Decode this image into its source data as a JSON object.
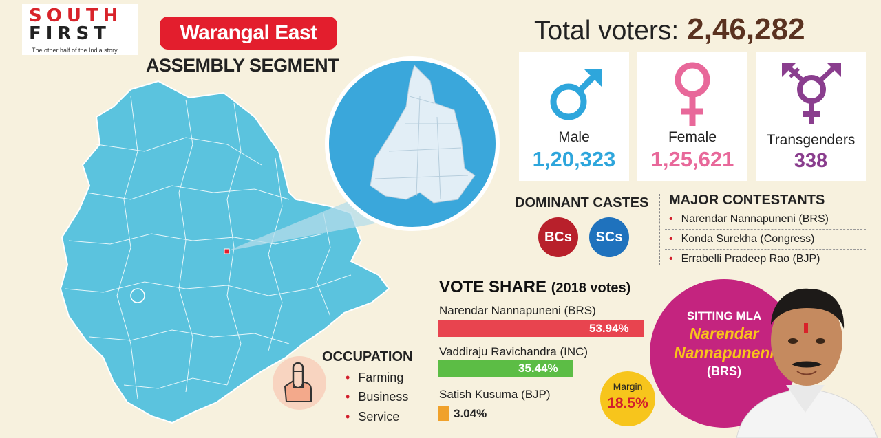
{
  "logo": {
    "line1": "SOUTH",
    "line2": "FIRST",
    "tagline": "The other half of the India story"
  },
  "title": "Warangal East",
  "subtitle": "ASSEMBLY SEGMENT",
  "total_voters": {
    "label": "Total voters:",
    "value": "2,46,282"
  },
  "gender": [
    {
      "label": "Male",
      "value": "1,20,323",
      "color": "#2ea6dc",
      "icon": "male-icon"
    },
    {
      "label": "Female",
      "value": "1,25,621",
      "color": "#e8689a",
      "icon": "female-icon"
    },
    {
      "label": "Transgenders",
      "value": "338",
      "color": "#8a3e8e",
      "icon": "transgender-icon"
    }
  ],
  "dominant_castes": {
    "title": "DOMINANT CASTES",
    "items": [
      {
        "label": "BCs",
        "color": "#b8202b"
      },
      {
        "label": "SCs",
        "color": "#1f72bd"
      }
    ]
  },
  "major_contestants": {
    "title": "MAJOR CONTESTANTS",
    "items": [
      "Narendar Nannapuneni (BRS)",
      "Konda Surekha (Congress)",
      "Errabelli Pradeep Rao (BJP)"
    ]
  },
  "vote_share": {
    "title": "VOTE SHARE",
    "title_suffix": "(2018 votes)",
    "candidates": [
      {
        "name": "Narendar Nannapuneni (BRS)",
        "value": 53.94,
        "label": "53.94%",
        "color": "#e8444f"
      },
      {
        "name": "Vaddiraju Ravichandra  (INC)",
        "value": 35.44,
        "label": "35.44%",
        "color": "#5cbd45"
      },
      {
        "name": "Satish Kusuma (BJP)",
        "value": 3.04,
        "label": "3.04%",
        "color": "#f0a12b"
      }
    ]
  },
  "margin": {
    "label": "Margin",
    "value": "18.5%"
  },
  "occupation": {
    "title": "OCCUPATION",
    "items": [
      "Farming",
      "Business",
      "Service"
    ]
  },
  "sitting_mla": {
    "label": "SITTING MLA",
    "first_name": "Narendar",
    "last_name": "Nannapuneni",
    "party": "(BRS)"
  },
  "colors": {
    "background": "#f7f1de",
    "map": "#5bc3de",
    "accent_red": "#e31e2d",
    "mla_circle": "#c4247f",
    "mla_name": "#f9c31b"
  }
}
